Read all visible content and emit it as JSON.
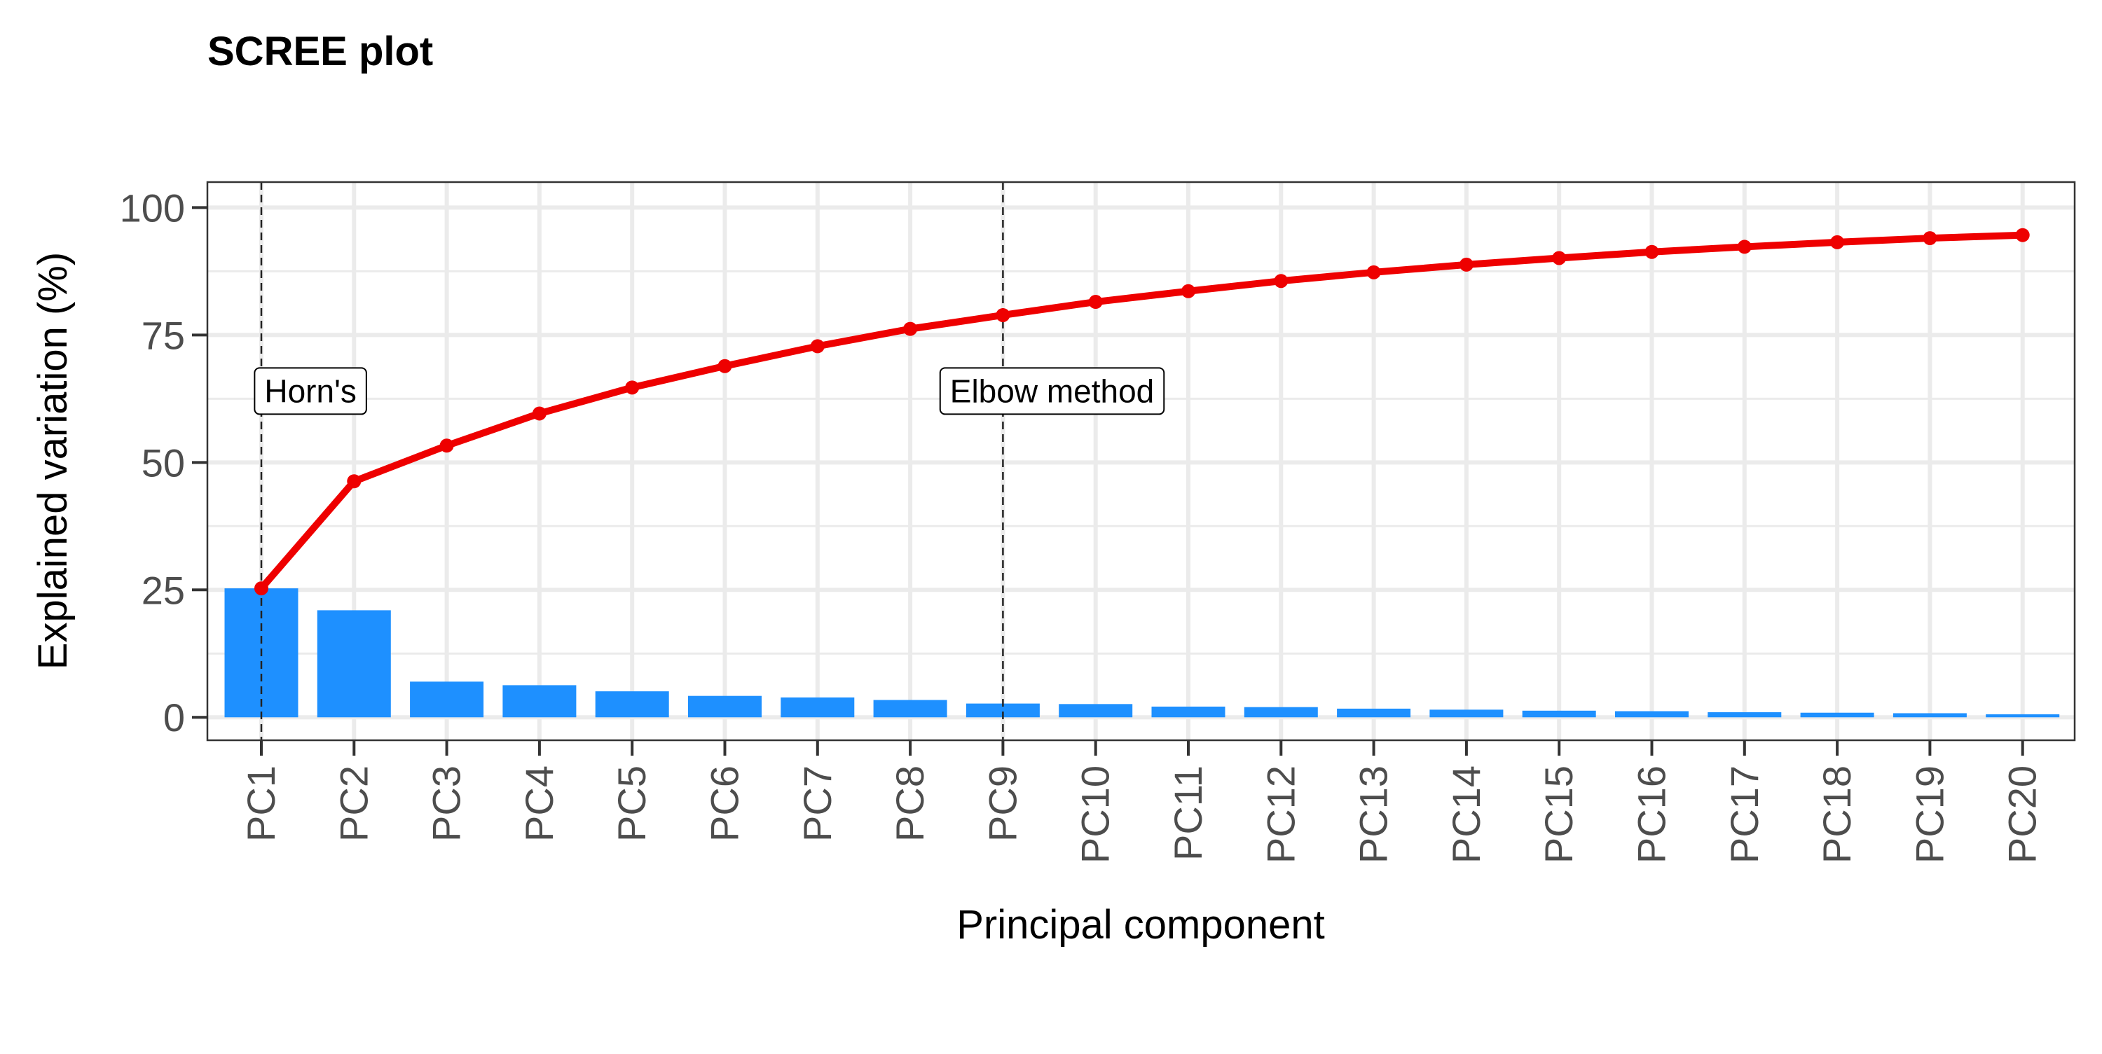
{
  "chart_data": {
    "type": "bar",
    "title": "SCREE plot",
    "xlabel": "Principal component",
    "ylabel": "Explained variation (%)",
    "categories": [
      "PC1",
      "PC2",
      "PC3",
      "PC4",
      "PC5",
      "PC6",
      "PC7",
      "PC8",
      "PC9",
      "PC10",
      "PC11",
      "PC12",
      "PC13",
      "PC14",
      "PC15",
      "PC16",
      "PC17",
      "PC18",
      "PC19",
      "PC20"
    ],
    "series": [
      {
        "type": "bar",
        "color": "#1e90ff",
        "values": [
          25.3,
          21.0,
          7.0,
          6.3,
          5.1,
          4.2,
          3.9,
          3.4,
          2.7,
          2.6,
          2.1,
          2.0,
          1.7,
          1.5,
          1.3,
          1.2,
          1.0,
          0.9,
          0.8,
          0.6
        ]
      },
      {
        "type": "line",
        "color": "#ee0000",
        "values": [
          25.3,
          46.3,
          53.3,
          59.6,
          64.7,
          68.9,
          72.8,
          76.2,
          78.9,
          81.5,
          83.6,
          85.6,
          87.3,
          88.8,
          90.1,
          91.3,
          92.3,
          93.2,
          94.0,
          94.6
        ]
      }
    ],
    "ylim": [
      -4.5,
      105
    ],
    "yticks": [
      0,
      25,
      50,
      75,
      100
    ],
    "grid": true,
    "vlines": [
      {
        "at": "PC1",
        "label": "Horn's"
      },
      {
        "at": "PC9",
        "label": "Elbow method"
      }
    ],
    "annotation_y": 64
  }
}
